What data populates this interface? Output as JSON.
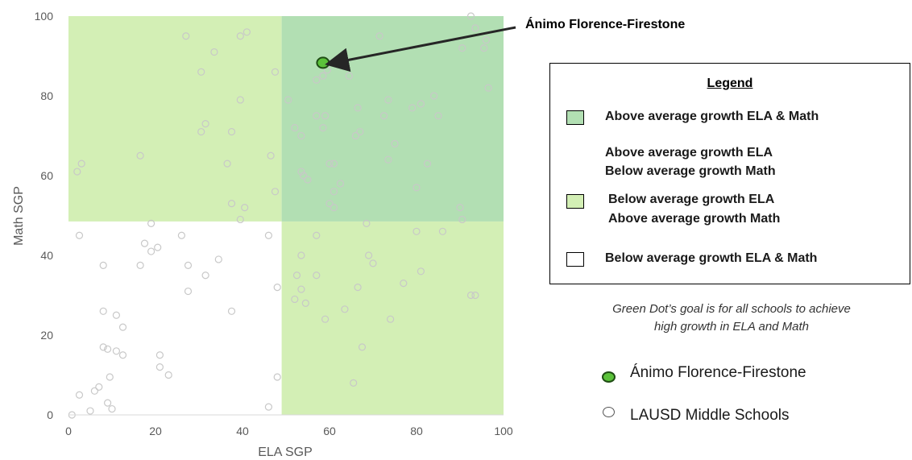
{
  "chart_data": {
    "type": "scatter",
    "xlabel": "ELA SGP",
    "ylabel": "Math SGP",
    "xlim": [
      0,
      100
    ],
    "ylim": [
      0,
      100
    ],
    "xticks": [
      "0",
      "20",
      "40",
      "60",
      "80",
      "100"
    ],
    "yticks": [
      "0",
      "20",
      "40",
      "60",
      "80",
      "100"
    ],
    "quadrant_threshold": {
      "x": 49,
      "y": 48.5
    },
    "colors": {
      "both_above": "#b2dfb3",
      "one_above": "#d3efb5",
      "below": "#ffffff",
      "school_dot_fill": "#5bc23a",
      "school_dot_stroke": "#1f4d14",
      "lausd_dot": "#c8c8c8"
    },
    "annotation": {
      "text": "Ánimo Florence-Firestone",
      "x": 58.5,
      "y": 88.3
    },
    "series": [
      {
        "name": "Ánimo Florence-Firestone",
        "points": [
          [
            58.5,
            88.3
          ]
        ]
      },
      {
        "name": "LAUSD Middle Schools",
        "points": [
          [
            0.8,
            0
          ],
          [
            2.5,
            5
          ],
          [
            5,
            1
          ],
          [
            6,
            6
          ],
          [
            7,
            7
          ],
          [
            9,
            3
          ],
          [
            10,
            1.5
          ],
          [
            9.5,
            9.5
          ],
          [
            8,
            17
          ],
          [
            9,
            16.5
          ],
          [
            11,
            16
          ],
          [
            12.5,
            15
          ],
          [
            8,
            26
          ],
          [
            11,
            25
          ],
          [
            12.5,
            22
          ],
          [
            8,
            37.5
          ],
          [
            16.5,
            37.5
          ],
          [
            17.5,
            43
          ],
          [
            19,
            41
          ],
          [
            20.5,
            42
          ],
          [
            19,
            48
          ],
          [
            21,
            15
          ],
          [
            21,
            12
          ],
          [
            23,
            10
          ],
          [
            27.5,
            31
          ],
          [
            27.5,
            37.5
          ],
          [
            26,
            45
          ],
          [
            31.5,
            35
          ],
          [
            34.5,
            39
          ],
          [
            37.5,
            26
          ],
          [
            2.5,
            45
          ],
          [
            2,
            61
          ],
          [
            3,
            63
          ],
          [
            16.5,
            65
          ],
          [
            27,
            95
          ],
          [
            30.5,
            86
          ],
          [
            33.5,
            91
          ],
          [
            30.5,
            71
          ],
          [
            31.5,
            73
          ],
          [
            37.5,
            71
          ],
          [
            36.5,
            63
          ],
          [
            37.5,
            53
          ],
          [
            39.5,
            49
          ],
          [
            40.5,
            52
          ],
          [
            39.5,
            79
          ],
          [
            39.5,
            95
          ],
          [
            41,
            96
          ],
          [
            47.5,
            86
          ],
          [
            46.5,
            65
          ],
          [
            47.5,
            56
          ],
          [
            46,
            45
          ],
          [
            48,
            32
          ],
          [
            48,
            9.5
          ],
          [
            46,
            2
          ],
          [
            50.5,
            79
          ],
          [
            52,
            72
          ],
          [
            53.5,
            70
          ],
          [
            53.5,
            61
          ],
          [
            54,
            60
          ],
          [
            55,
            59
          ],
          [
            57,
            84
          ],
          [
            58.5,
            85
          ],
          [
            59.5,
            86.5
          ],
          [
            57,
            75
          ],
          [
            59,
            75
          ],
          [
            58.5,
            72
          ],
          [
            60,
            63
          ],
          [
            61,
            63
          ],
          [
            61,
            56
          ],
          [
            60,
            53
          ],
          [
            61,
            52
          ],
          [
            62.5,
            58
          ],
          [
            64.5,
            85
          ],
          [
            66.5,
            77
          ],
          [
            66,
            70
          ],
          [
            67,
            71
          ],
          [
            71.5,
            95
          ],
          [
            72.5,
            75
          ],
          [
            73.5,
            79
          ],
          [
            73.5,
            64
          ],
          [
            75,
            68
          ],
          [
            79,
            77
          ],
          [
            81,
            78
          ],
          [
            82.5,
            63
          ],
          [
            80,
            57
          ],
          [
            84,
            80
          ],
          [
            85,
            75
          ],
          [
            57,
            45
          ],
          [
            53.5,
            40
          ],
          [
            52.5,
            35
          ],
          [
            57,
            35
          ],
          [
            53.5,
            31.5
          ],
          [
            52,
            29
          ],
          [
            54.5,
            28
          ],
          [
            59,
            24
          ],
          [
            63.5,
            26.5
          ],
          [
            68.5,
            48
          ],
          [
            69,
            40
          ],
          [
            70,
            38
          ],
          [
            66.5,
            32
          ],
          [
            67.5,
            17
          ],
          [
            65.5,
            8
          ],
          [
            74,
            24
          ],
          [
            77,
            33
          ],
          [
            80,
            46
          ],
          [
            81,
            36
          ],
          [
            86,
            46
          ],
          [
            90,
            52
          ],
          [
            90.5,
            49
          ],
          [
            92.5,
            30
          ],
          [
            93.5,
            30
          ],
          [
            92.5,
            100
          ],
          [
            93.5,
            97
          ],
          [
            95.5,
            92
          ],
          [
            96,
            94
          ],
          [
            96.5,
            82
          ],
          [
            90.5,
            92
          ]
        ]
      }
    ]
  },
  "legend": {
    "title": "Legend",
    "items": [
      {
        "label": "Above average growth ELA & Math",
        "color": "#b2dfb3"
      },
      {
        "label_line1": "Above average growth ELA",
        "label_line2": "Below average growth Math"
      },
      {
        "label_line1": "Below average growth ELA",
        "label_line2": "Above average growth Math",
        "color": "#d3efb5"
      },
      {
        "label": "Below average growth ELA & Math",
        "color": "#ffffff"
      }
    ]
  },
  "goal_text": {
    "line1": "Green Dot’s goal is for all schools to achieve",
    "line2": "high growth in ELA and Math"
  },
  "series_legend": {
    "school": "Ánimo Florence-Firestone",
    "lausd": "LAUSD Middle Schools"
  }
}
